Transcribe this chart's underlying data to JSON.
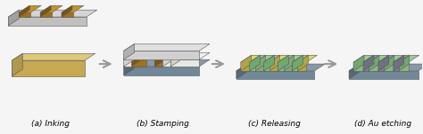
{
  "background_color": "#f5f5f5",
  "labels": [
    "(a) Inking",
    "(b) Stamping",
    "(c) Releasing",
    "(d) Au etching"
  ],
  "label_fontsize": 6.5,
  "fig_width": 4.74,
  "fig_height": 1.51,
  "colors": {
    "pdms_body_top": "#d8d8d8",
    "pdms_body_left": "#b0b0b0",
    "pdms_body_front": "#c8c8c8",
    "metal_top": "#c8922a",
    "metal_left": "#8a6010",
    "metal_front": "#a07020",
    "substrate_top": "#dfc87a",
    "substrate_left": "#b09850",
    "substrate_front": "#c8a850",
    "grey_top": "#8898a8",
    "grey_left": "#586878",
    "grey_front": "#6878888",
    "green_top": "#a0c898",
    "green_left": "#70987068",
    "green_front": "#88b880",
    "yellow_top": "#e0d468",
    "yellow_front": "#b0a448",
    "white_top": "#f0f0f0",
    "white_front": "#e0e0e0",
    "arrow_color": "#aaaaaa"
  }
}
